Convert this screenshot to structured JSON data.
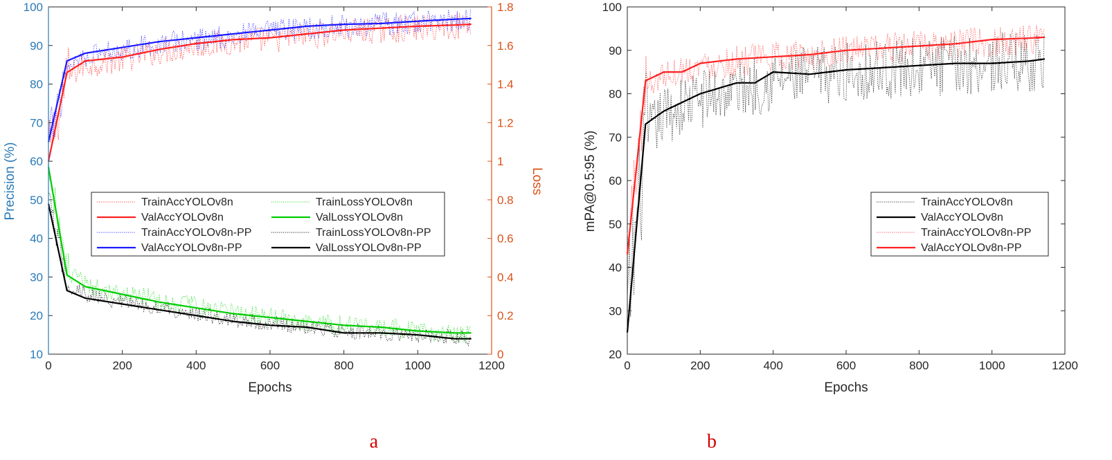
{
  "chart_data": [
    {
      "type": "line",
      "panel_label": "a",
      "xlabel": "Epochs",
      "ylabel": "Precision (%)",
      "ylabel_right": "Loss",
      "xlim": [
        0,
        1200
      ],
      "ylim": [
        10,
        100
      ],
      "ylim_right": [
        0,
        1.8
      ],
      "xticks": [
        "0",
        "200",
        "400",
        "600",
        "800",
        "1000",
        "1200"
      ],
      "yticks": [
        "10",
        "20",
        "30",
        "40",
        "50",
        "60",
        "70",
        "80",
        "90",
        "100"
      ],
      "yticks_right": [
        "0",
        "0.2",
        "0.4",
        "0.6",
        "0.8",
        "1",
        "1.2",
        "1.4",
        "1.6",
        "1.8"
      ],
      "colors": {
        "left_axis": "#2a7ab8",
        "right_axis": "#d95319"
      },
      "legend_position": "center",
      "series": [
        {
          "name": "TrainAccYOLOv8n",
          "axis": "left",
          "style": "dotted",
          "color": "#ff3b3b",
          "noise": 3.5,
          "x": [
            0,
            50,
            100,
            200,
            300,
            400,
            500,
            600,
            700,
            800,
            900,
            1000,
            1100,
            1145
          ],
          "values": [
            62,
            82,
            85,
            86.5,
            88.5,
            90,
            91,
            91.5,
            92.5,
            93.5,
            94,
            94.5,
            95,
            95.5
          ]
        },
        {
          "name": "ValAccYOLOv8n",
          "axis": "left",
          "style": "solid",
          "color": "#ff2020",
          "x": [
            0,
            50,
            100,
            200,
            300,
            400,
            500,
            600,
            700,
            800,
            900,
            1000,
            1100,
            1145
          ],
          "values": [
            60,
            83,
            86,
            87,
            89,
            90.5,
            91.5,
            92,
            93,
            94,
            94.5,
            95,
            95.3,
            95.5
          ]
        },
        {
          "name": "TrainAccYOLOv8n-PP",
          "axis": "left",
          "style": "dotted",
          "color": "#3b3bff",
          "noise": 3,
          "x": [
            0,
            50,
            100,
            200,
            300,
            400,
            500,
            600,
            700,
            800,
            900,
            1000,
            1100,
            1145
          ],
          "values": [
            64,
            85,
            87.5,
            89,
            90.5,
            91.5,
            92.5,
            93.5,
            94.5,
            95,
            95.5,
            96,
            96.5,
            96.8
          ]
        },
        {
          "name": "ValAccYOLOv8n-PP",
          "axis": "left",
          "style": "solid",
          "color": "#1a1aff",
          "x": [
            0,
            50,
            100,
            200,
            300,
            400,
            500,
            600,
            700,
            800,
            900,
            1000,
            1100,
            1145
          ],
          "values": [
            65,
            86,
            88,
            89.5,
            91,
            92,
            93,
            94,
            95,
            95.5,
            95.7,
            96.3,
            96.8,
            97
          ]
        },
        {
          "name": "TrainLossYOLOv8n",
          "axis": "right",
          "style": "dotted",
          "color": "#33dd33",
          "noise": 0.05,
          "x": [
            0,
            50,
            100,
            200,
            300,
            400,
            500,
            600,
            700,
            800,
            900,
            1000,
            1100,
            1145
          ],
          "values": [
            1.0,
            0.42,
            0.36,
            0.32,
            0.28,
            0.25,
            0.22,
            0.19,
            0.17,
            0.15,
            0.14,
            0.12,
            0.11,
            0.11
          ]
        },
        {
          "name": "ValLossYOLOv8n",
          "axis": "right",
          "style": "solid",
          "color": "#00cc00",
          "x": [
            0,
            50,
            100,
            200,
            300,
            400,
            500,
            600,
            700,
            800,
            900,
            1000,
            1100,
            1145
          ],
          "values": [
            0.97,
            0.41,
            0.35,
            0.31,
            0.27,
            0.24,
            0.21,
            0.19,
            0.17,
            0.15,
            0.14,
            0.12,
            0.11,
            0.11
          ]
        },
        {
          "name": "TrainLossYOLOv8n-PP",
          "axis": "right",
          "style": "dotted",
          "color": "#222222",
          "noise": 0.04,
          "x": [
            0,
            50,
            100,
            200,
            300,
            400,
            500,
            600,
            700,
            800,
            900,
            1000,
            1100,
            1145
          ],
          "values": [
            0.8,
            0.36,
            0.31,
            0.27,
            0.24,
            0.21,
            0.18,
            0.16,
            0.14,
            0.12,
            0.11,
            0.1,
            0.09,
            0.08
          ]
        },
        {
          "name": "ValLossYOLOv8n-PP",
          "axis": "right",
          "style": "solid",
          "color": "#000000",
          "x": [
            0,
            50,
            100,
            200,
            300,
            400,
            500,
            600,
            700,
            800,
            900,
            1000,
            1100,
            1145
          ],
          "values": [
            0.78,
            0.33,
            0.29,
            0.26,
            0.23,
            0.2,
            0.17,
            0.15,
            0.14,
            0.11,
            0.11,
            0.1,
            0.08,
            0.08
          ]
        }
      ]
    },
    {
      "type": "line",
      "panel_label": "b",
      "xlabel": "Epochs",
      "ylabel": "mPA@0.5:95 (%)",
      "xlim": [
        0,
        1200
      ],
      "ylim": [
        20,
        100
      ],
      "xticks": [
        "0",
        "200",
        "400",
        "600",
        "800",
        "1000",
        "1200"
      ],
      "yticks": [
        "20",
        "30",
        "40",
        "50",
        "60",
        "70",
        "80",
        "90",
        "100"
      ],
      "legend_position": "right",
      "series": [
        {
          "name": "TrainAccYOLOv8n",
          "style": "dotted",
          "color": "#333333",
          "noise": 7,
          "x": [
            0,
            50,
            100,
            200,
            300,
            400,
            500,
            600,
            700,
            800,
            900,
            1000,
            1100,
            1145
          ],
          "values": [
            28,
            70,
            75,
            79,
            81,
            83,
            84,
            85,
            85.5,
            86,
            86.5,
            87,
            87.5,
            87
          ]
        },
        {
          "name": "ValAccYOLOv8n",
          "style": "solid",
          "color": "#000000",
          "x": [
            0,
            50,
            100,
            200,
            300,
            350,
            400,
            500,
            600,
            700,
            800,
            900,
            1000,
            1100,
            1145
          ],
          "values": [
            25,
            73,
            76,
            80,
            82.5,
            82.5,
            85,
            84.5,
            85.5,
            86,
            86.5,
            87,
            87,
            87.5,
            88
          ]
        },
        {
          "name": "TrainAccYOLOv8n-PP",
          "style": "dotted",
          "color": "#ff5555",
          "noise": 3.5,
          "x": [
            0,
            50,
            100,
            200,
            300,
            400,
            500,
            600,
            700,
            800,
            900,
            1000,
            1100,
            1145
          ],
          "values": [
            45,
            82,
            84.5,
            86.5,
            87.5,
            88.5,
            89,
            90,
            90.5,
            91,
            91.5,
            92,
            92.5,
            92.5
          ]
        },
        {
          "name": "ValAccYOLOv8n-PP",
          "style": "solid",
          "color": "#ff2020",
          "x": [
            0,
            50,
            100,
            150,
            200,
            300,
            400,
            500,
            600,
            700,
            800,
            900,
            1000,
            1100,
            1145
          ],
          "values": [
            43,
            83,
            85,
            85,
            87,
            88,
            88.5,
            89,
            90,
            90.5,
            91,
            91.5,
            92.5,
            92.8,
            93
          ]
        }
      ]
    }
  ]
}
